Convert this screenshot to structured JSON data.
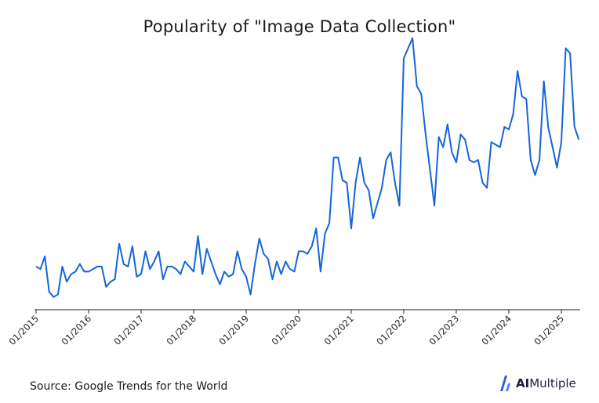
{
  "title": "Popularity of \"Image Data Collection\"",
  "source": "Source: Google Trends for the World",
  "brand": {
    "prefix": "AI",
    "suffix": "Multiple"
  },
  "colors": {
    "line": "#1565d8",
    "axis": "#222222",
    "brand_accent": "#3b5bdb"
  },
  "chart_data": {
    "type": "line",
    "title": "Popularity of \"Image Data Collection\"",
    "xlabel": "",
    "ylabel": "",
    "grid": false,
    "legend": "none",
    "x_start": "2015-01",
    "x_tick_labels": [
      "01/2015",
      "01/2016",
      "01/2017",
      "01/2018",
      "01/2019",
      "01/2020",
      "01/2021",
      "01/2022",
      "01/2023",
      "01/2024",
      "01/2025"
    ],
    "ylim": [
      0,
      105
    ],
    "series": [
      {
        "values": [
          17,
          16,
          21,
          7,
          5,
          6,
          17,
          11,
          14,
          15,
          18,
          15,
          15,
          16,
          17,
          17,
          9,
          11,
          12,
          26,
          18,
          17,
          25,
          13,
          14,
          23,
          16,
          19,
          23,
          12,
          17,
          17,
          16,
          14,
          19,
          17,
          15,
          29,
          14,
          24,
          19,
          14,
          10,
          15,
          13,
          14,
          23,
          16,
          13,
          6,
          18,
          28,
          22,
          20,
          12,
          19,
          14,
          19,
          16,
          15,
          23,
          23,
          22,
          25,
          32,
          15,
          30,
          34,
          60,
          60,
          51,
          50,
          32,
          50,
          60,
          50,
          47,
          36,
          42,
          48,
          59,
          62,
          50,
          41,
          99,
          103,
          107,
          88,
          85,
          69,
          55,
          41,
          68,
          64,
          73,
          62,
          58,
          69,
          67,
          59,
          58,
          59,
          50,
          48,
          66,
          65,
          64,
          72,
          71,
          77,
          94,
          84,
          83,
          59,
          53,
          59,
          90,
          72,
          64,
          56,
          66,
          103,
          101,
          72,
          67
        ]
      }
    ]
  }
}
